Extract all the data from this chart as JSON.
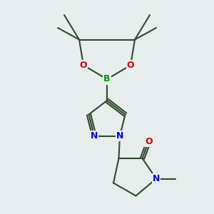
{
  "bg_color": "#e8eeee",
  "bond_color": "#2d4a2d",
  "bond_lw": 1.5,
  "atom_colors": {
    "N": "#0000cc",
    "O": "#cc0000",
    "B": "#009900",
    "C": "#2d4a2d"
  },
  "font_size": 9,
  "font_size_small": 8
}
